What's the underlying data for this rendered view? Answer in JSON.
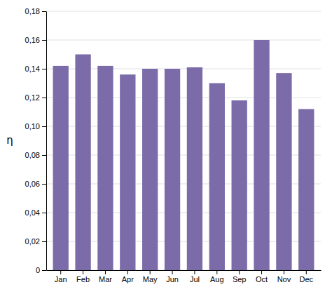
{
  "chart_data": {
    "type": "bar",
    "ylabel": "η",
    "categories": [
      "Jan",
      "Feb",
      "Mar",
      "Apr",
      "May",
      "Jun",
      "Jul",
      "Aug",
      "Sep",
      "Oct",
      "Nov",
      "Dec"
    ],
    "values": [
      0.142,
      0.15,
      0.142,
      0.136,
      0.14,
      0.14,
      0.141,
      0.13,
      0.118,
      0.16,
      0.137,
      0.112
    ],
    "color": "#7B6BA8",
    "ylim": [
      0,
      0.18
    ],
    "yticks": [
      0,
      {
        "value": 0.02,
        "label": "0,02"
      },
      {
        "value": 0.04,
        "label": "0,04"
      },
      {
        "value": 0.06,
        "label": "0,06"
      },
      {
        "value": 0.08,
        "label": "0,08"
      },
      {
        "value": 0.1,
        "label": "0,10"
      },
      {
        "value": 0.12,
        "label": "0,12"
      },
      {
        "value": 0.14,
        "label": "0,14"
      },
      {
        "value": 0.16,
        "label": "0,16"
      },
      {
        "value": 0.18,
        "label": "0,18"
      }
    ],
    "grid": true
  }
}
